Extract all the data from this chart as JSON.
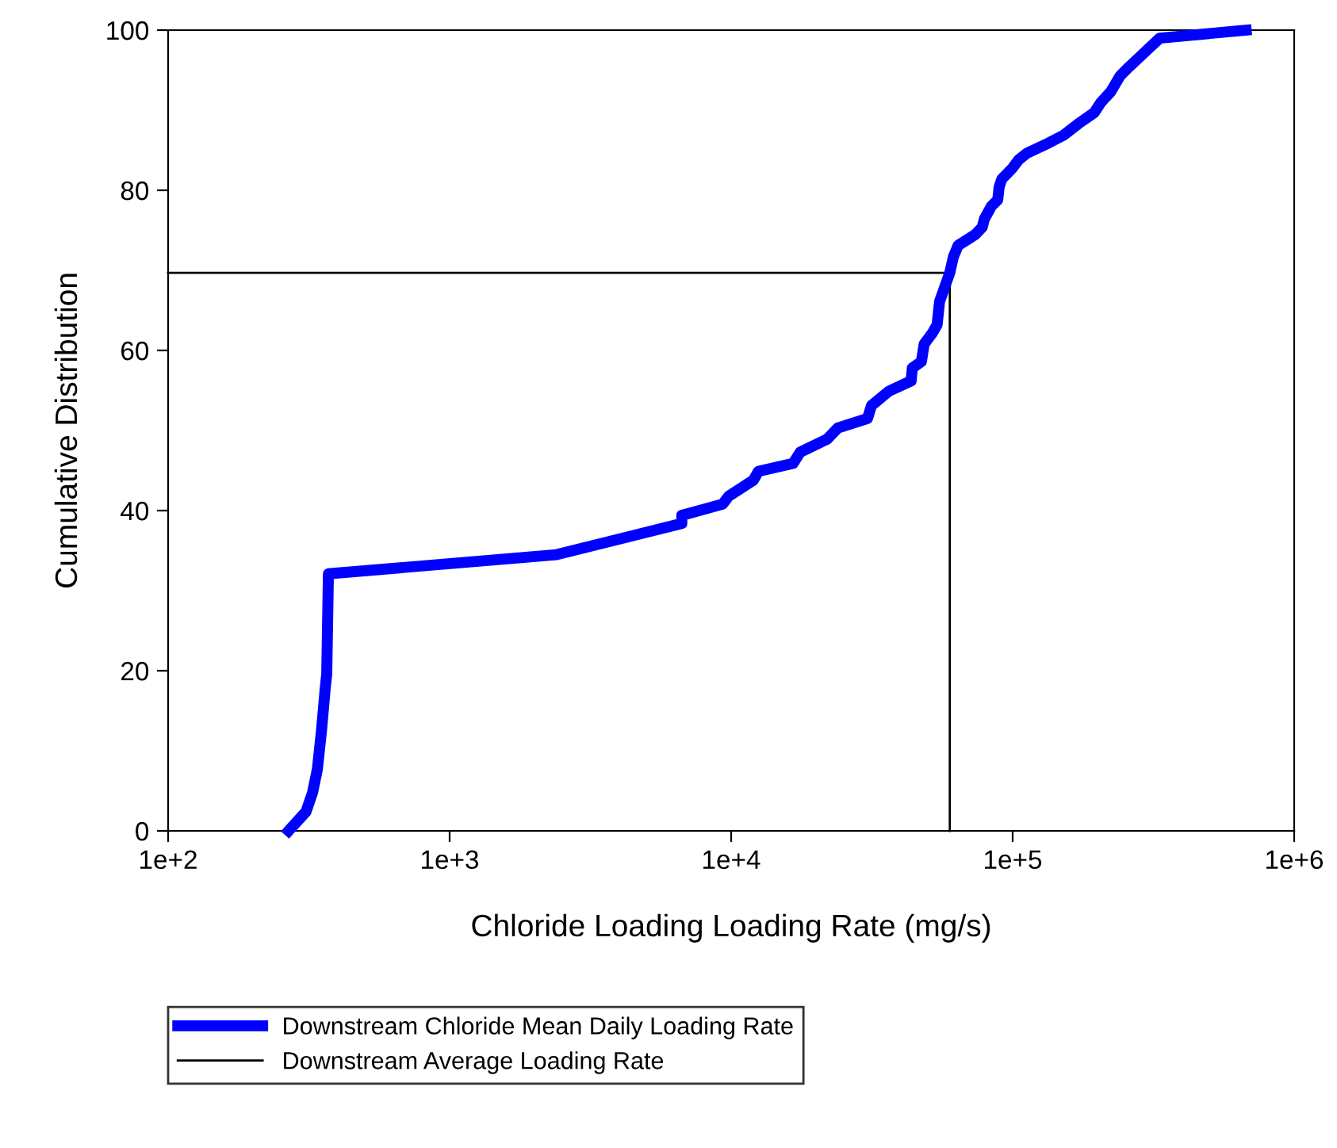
{
  "chart_data": {
    "type": "line",
    "xlabel": "Chloride Loading Loading Rate (mg/s)",
    "ylabel": "Cumulative Distribution",
    "log": "x",
    "xlim": [
      100,
      1000000
    ],
    "ylim": [
      0,
      100
    ],
    "xticks": [
      {
        "value": 100,
        "label": "1e+2"
      },
      {
        "value": 1000,
        "label": "1e+3"
      },
      {
        "value": 10000,
        "label": "1e+4"
      },
      {
        "value": 100000,
        "label": "1e+5"
      },
      {
        "value": 1000000,
        "label": "1e+6"
      }
    ],
    "yticks": [
      0,
      20,
      40,
      60,
      80,
      100
    ],
    "grid": false,
    "legend": "bottom",
    "marker": "none",
    "line_style": "solid",
    "series": [
      {
        "name": "Downstream Chloride Mean Daily Loading Rate",
        "color": "#0000ff",
        "x": [
          268,
          309,
          326,
          339,
          351,
          361,
          366,
          371,
          2400,
          6680,
          6680,
          9330,
          9800,
          12000,
          12500,
          16600,
          17600,
          21900,
          23900,
          30500,
          31500,
          36300,
          43600,
          44000,
          47400,
          48500,
          51900,
          53900,
          55000,
          57600,
          59800,
          61600,
          64000,
          73800,
          78000,
          79300,
          84000,
          88500,
          89500,
          91500,
          100000,
          105000,
          112000,
          134000,
          152000,
          171000,
          195000,
          205000,
          223000,
          241000,
          259000,
          333000,
          675000
        ],
        "values": [
          0,
          2.4,
          4.8,
          7.7,
          12.7,
          17.6,
          19.6,
          32.1,
          34.5,
          38.4,
          39.4,
          40.8,
          41.8,
          43.8,
          44.9,
          45.9,
          47.3,
          48.9,
          50.3,
          51.5,
          53.1,
          54.9,
          56.2,
          57.8,
          58.6,
          60.8,
          62.2,
          63.2,
          66.1,
          68.1,
          69.7,
          71.7,
          73.1,
          74.5,
          75.4,
          76.4,
          78.0,
          78.8,
          80.4,
          81.4,
          82.8,
          83.8,
          84.6,
          85.9,
          86.9,
          88.3,
          89.7,
          90.9,
          92.3,
          94.3,
          95.4,
          99.0,
          100
        ]
      },
      {
        "name": "Downstream Average Loading Rate",
        "color": "#000000",
        "x": [
          100,
          59800,
          59800
        ],
        "values": [
          69.7,
          69.7,
          0
        ]
      }
    ]
  }
}
